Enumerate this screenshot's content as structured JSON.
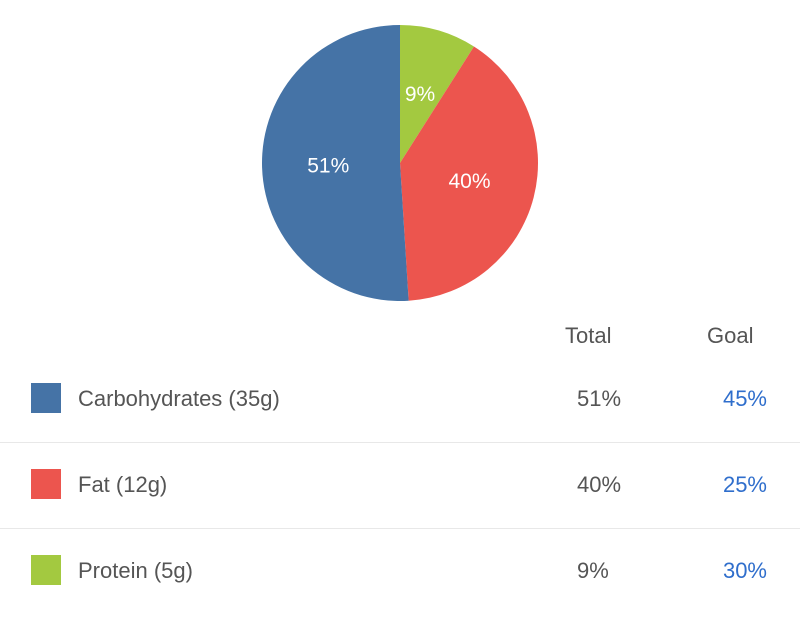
{
  "chart_data": {
    "type": "pie",
    "slices": [
      {
        "label": "Carbohydrates (35g)",
        "value": 51,
        "display": "51%",
        "color": "#4573a6"
      },
      {
        "label": "Fat (12g)",
        "value": 40,
        "display": "40%",
        "color": "#ec554e"
      },
      {
        "label": "Protein (5g)",
        "value": 9,
        "display": "9%",
        "color": "#a3c940"
      }
    ],
    "start": "top",
    "direction": "clockwise-from-protein"
  },
  "table": {
    "headers": {
      "total": "Total",
      "goal": "Goal"
    },
    "rows": [
      {
        "label": "Carbohydrates (35g)",
        "total": "51%",
        "goal": "45%",
        "color": "#4573a6"
      },
      {
        "label": "Fat (12g)",
        "total": "40%",
        "goal": "25%",
        "color": "#ec554e"
      },
      {
        "label": "Protein (5g)",
        "total": "9%",
        "goal": "30%",
        "color": "#a3c940"
      }
    ]
  },
  "colors": {
    "goal_text": "#2f6ecc",
    "divider": "#e8e8e8"
  }
}
